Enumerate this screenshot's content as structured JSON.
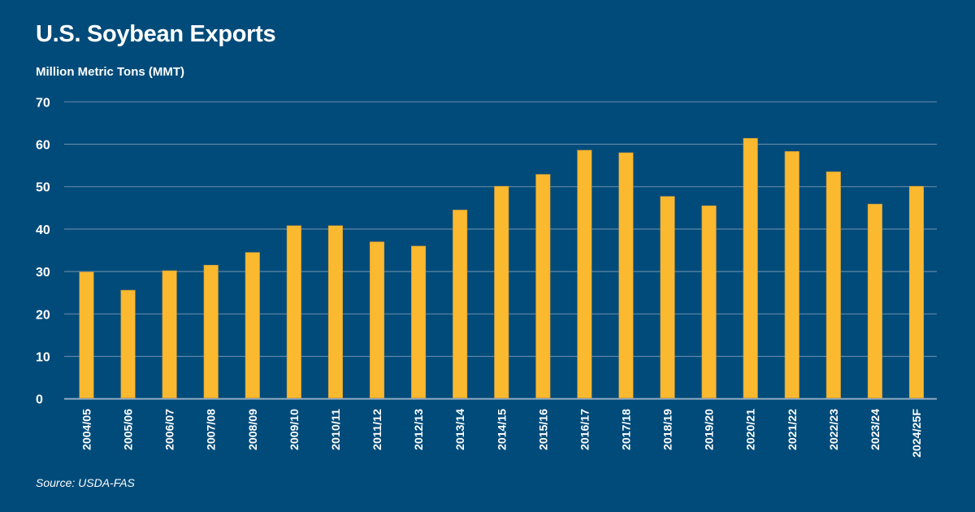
{
  "chart_data": {
    "type": "bar",
    "title": "U.S. Soybean Exports",
    "subtitle": "Million Metric Tons (MMT)",
    "source": "Source: USDA-FAS",
    "xlabel": "",
    "ylabel": "Million Metric Tons (MMT)",
    "ylim": [
      0,
      70
    ],
    "yticks": [
      0,
      10,
      20,
      30,
      40,
      50,
      60,
      70
    ],
    "grid": true,
    "legend": "none",
    "categories": [
      "2004/05",
      "2005/06",
      "2006/07",
      "2007/08",
      "2008/09",
      "2009/10",
      "2010/11",
      "2011/12",
      "2012/13",
      "2013/14",
      "2014/15",
      "2015/16",
      "2016/17",
      "2017/18",
      "2018/19",
      "2019/20",
      "2020/21",
      "2021/22",
      "2022/23",
      "2023/24",
      "2024/25F"
    ],
    "values": [
      29.9,
      25.6,
      30.2,
      31.5,
      34.5,
      40.8,
      40.8,
      37.0,
      36.0,
      44.5,
      50.1,
      52.9,
      58.6,
      58.0,
      47.7,
      45.5,
      61.4,
      58.3,
      53.5,
      45.9,
      50.1
    ],
    "colors": {
      "background": "#004B7A",
      "bar": "#FBB930",
      "bar_edge": "#C9973A",
      "grid": "#5F86A6",
      "text": "#FFFFFF"
    }
  }
}
